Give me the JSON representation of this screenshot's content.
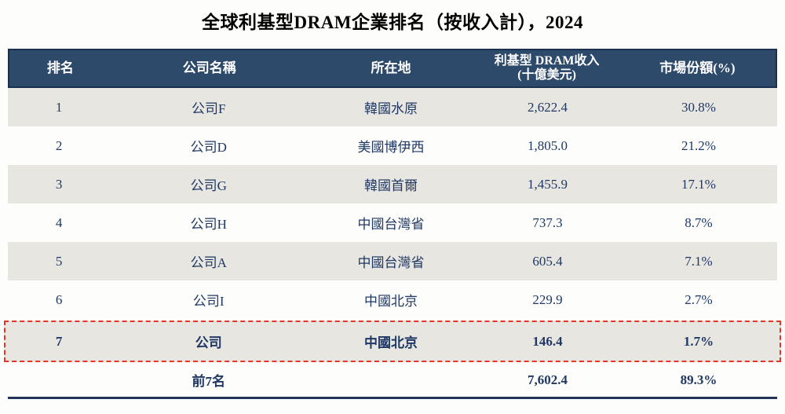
{
  "page_title": "全球利基型DRAM企業排名（按收入計），2024",
  "colors": {
    "header_background": "#2D4A6B",
    "header_border": "#1C3050",
    "header_text": "#FFFFFF",
    "body_text_navy": "#1F3864",
    "shaded_row_background": "#E8E6E1",
    "highlight_dashed_border": "#E5352B",
    "bottom_rule": "#23345A",
    "title_text": "#000000"
  },
  "table": {
    "headers": {
      "rank": "排名",
      "company": "公司名稱",
      "location": "所在地",
      "revenue_line1": "利基型 DRAM收入",
      "revenue_line2": "(十億美元)",
      "share": "市場份額(%)"
    },
    "rows": [
      {
        "rank": "1",
        "company": "公司F",
        "location": "韓國水原",
        "revenue": "2,622.4",
        "share": "30.8%",
        "shade": true,
        "highlighted": false
      },
      {
        "rank": "2",
        "company": "公司D",
        "location": "美國博伊西",
        "revenue": "1,805.0",
        "share": "21.2%",
        "shade": false,
        "highlighted": false
      },
      {
        "rank": "3",
        "company": "公司G",
        "location": "韓國首爾",
        "revenue": "1,455.9",
        "share": "17.1%",
        "shade": true,
        "highlighted": false
      },
      {
        "rank": "4",
        "company": "公司H",
        "location": "中國台灣省",
        "revenue": "737.3",
        "share": "8.7%",
        "shade": false,
        "highlighted": false
      },
      {
        "rank": "5",
        "company": "公司A",
        "location": "中國台灣省",
        "revenue": "605.4",
        "share": "7.1%",
        "shade": true,
        "highlighted": false
      },
      {
        "rank": "6",
        "company": "公司I",
        "location": "中國北京",
        "revenue": "229.9",
        "share": "2.7%",
        "shade": false,
        "highlighted": false
      },
      {
        "rank": "7",
        "company": "公司",
        "location": "中國北京",
        "revenue": "146.4",
        "share": "1.7%",
        "shade": true,
        "highlighted": true
      }
    ],
    "footer": {
      "label": "前7名",
      "rank": "",
      "location": "",
      "revenue": "7,602.4",
      "share": "89.3%"
    }
  }
}
